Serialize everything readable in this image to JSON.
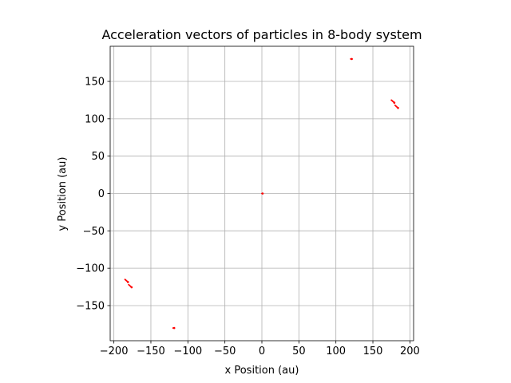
{
  "chart_data": {
    "type": "quiver",
    "title": "Acceleration vectors of particles in 8-body system",
    "xlabel": "x Position (au)",
    "ylabel": "y Position (au)",
    "xlim": [
      -205,
      205
    ],
    "ylim": [
      -197,
      197
    ],
    "xticks": [
      -200,
      -150,
      -100,
      -50,
      0,
      50,
      100,
      150,
      200
    ],
    "yticks": [
      -150,
      -100,
      -50,
      0,
      50,
      100,
      150
    ],
    "xtick_labels": [
      "−200",
      "−150",
      "−100",
      "−50",
      "0",
      "50",
      "100",
      "150",
      "200"
    ],
    "ytick_labels": [
      "−150",
      "−100",
      "−50",
      "0",
      "50",
      "100",
      "150"
    ],
    "grid": true,
    "arrow_color": "#ff0000",
    "vectors": [
      {
        "x": 0,
        "y": 0,
        "dx": 1.0,
        "dy": 0
      },
      {
        "x": 120,
        "y": 180,
        "dx": 1.5,
        "dy": 0
      },
      {
        "x": -120,
        "y": -180,
        "dx": 1.5,
        "dy": 0
      },
      {
        "x": 175,
        "y": 125,
        "dx": 4,
        "dy": -3.5
      },
      {
        "x": 180,
        "y": 118,
        "dx": 4,
        "dy": -3.5
      },
      {
        "x": -185,
        "y": -115,
        "dx": 4,
        "dy": -3.5
      },
      {
        "x": -180,
        "y": -122,
        "dx": 4,
        "dy": -3.5
      }
    ]
  }
}
